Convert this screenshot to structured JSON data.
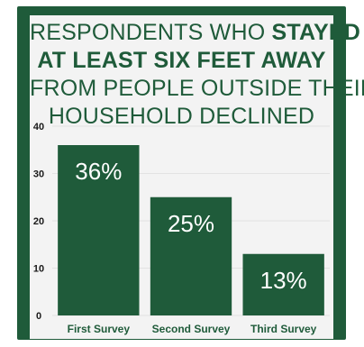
{
  "title": {
    "line1_prefix": "RESPONDENTS WHO",
    "line1_bold": "STAYED",
    "line2_bold": "AT LEAST SIX FEET AWAY",
    "line3": "FROM PEOPLE OUTSIDE THEIR",
    "line4": "HOUSEHOLD DECLINED"
  },
  "colors": {
    "frame": "#1f5b3a",
    "bar": "#1f5b3a",
    "panel": "#f3f3f3",
    "text_dark": "#1a1a1a"
  },
  "chart_data": {
    "type": "bar",
    "title": "RESPONDENTS WHO STAYED AT LEAST SIX FEET AWAY FROM PEOPLE OUTSIDE THEIR HOUSEHOLD DECLINED",
    "categories": [
      "First Survey",
      "Second Survey",
      "Third Survey"
    ],
    "values": [
      36,
      25,
      13
    ],
    "data_labels": [
      "36%",
      "25%",
      "13%"
    ],
    "yticks": [
      0,
      10,
      20,
      30,
      40
    ],
    "ylim": [
      0,
      40
    ],
    "xlabel": "",
    "ylabel": "",
    "grid": true,
    "legend": "none"
  }
}
